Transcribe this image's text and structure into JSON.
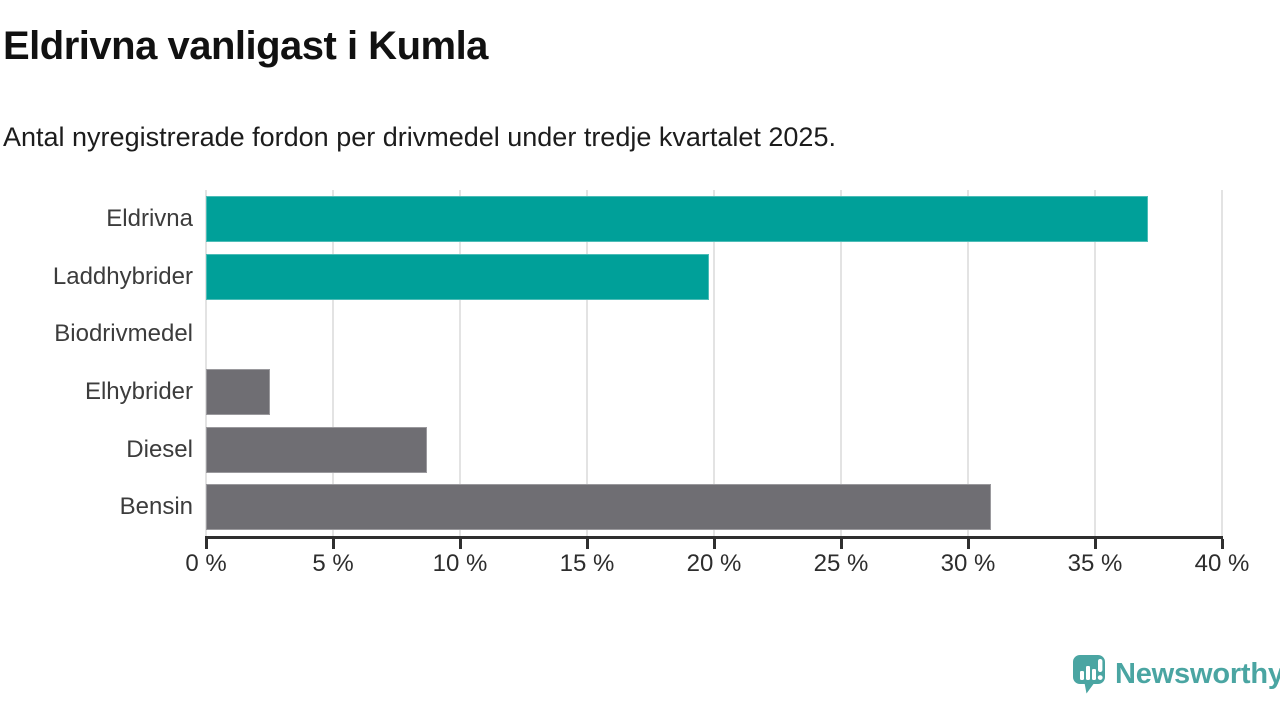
{
  "title": "Eldrivna vanligast i Kumla",
  "subtitle": "Antal nyregistrerade fordon per drivmedel under tredje kvartalet 2025.",
  "brand": {
    "name": "Newsworthy",
    "color": "#4aa5a2"
  },
  "chart_data": {
    "type": "bar",
    "orientation": "horizontal",
    "title": "Eldrivna vanligast i Kumla",
    "subtitle": "Antal nyregistrerade fordon per drivmedel under tredje kvartalet 2025.",
    "categories": [
      "Eldrivna",
      "Laddhybrider",
      "Biodrivmedel",
      "Elhybrider",
      "Diesel",
      "Bensin"
    ],
    "values": [
      37.1,
      19.8,
      0,
      2.5,
      8.7,
      30.9
    ],
    "unit": "%",
    "bar_colors": [
      "#00a099",
      "#00a099",
      "#6f6e73",
      "#6f6e73",
      "#6f6e73",
      "#6f6e73"
    ],
    "highlight_color": "#00a099",
    "default_color": "#6f6e73",
    "xlim": [
      0,
      40
    ],
    "x_ticks": [
      0,
      5,
      10,
      15,
      20,
      25,
      30,
      35,
      40
    ],
    "x_tick_labels": [
      "0 %",
      "5 %",
      "10 %",
      "15 %",
      "20 %",
      "25 %",
      "30 %",
      "35 %",
      "40 %"
    ],
    "grid": true,
    "gridline_color": "#e3e3e3",
    "axis_color": "#2f2f2f",
    "legend": "none"
  }
}
